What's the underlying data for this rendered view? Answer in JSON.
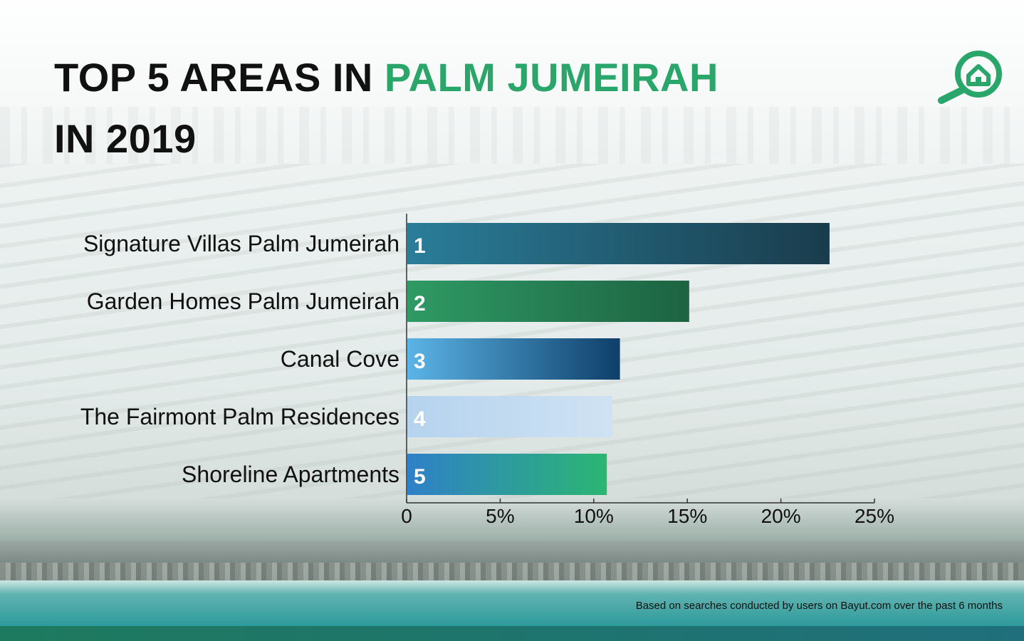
{
  "title": {
    "part1": "TOP 5 AREAS IN ",
    "accent": "PALM JUMEIRAH",
    "line2": "IN 2019"
  },
  "logo": {
    "icon": "search-home-icon",
    "color": "#2aa66b"
  },
  "footnote": "Based on searches conducted by users on Bayut.com over the past 6 months",
  "colors": {
    "accent": "#2aa66b",
    "title": "#111111"
  },
  "chart_data": {
    "type": "bar",
    "orientation": "horizontal",
    "title": "TOP 5 AREAS IN PALM JUMEIRAH IN 2019",
    "categories": [
      "Signature Villas Palm Jumeirah",
      "Garden Homes Palm Jumeirah",
      "Canal Cove",
      "The Fairmont Palm Residences",
      "Shoreline Apartments"
    ],
    "values": [
      22.6,
      15.1,
      11.4,
      11.0,
      10.7
    ],
    "bar_labels": [
      "1",
      "2",
      "3",
      "4",
      "5"
    ],
    "bar_gradients": [
      [
        "#2a7d99",
        "#1a3c4c"
      ],
      [
        "#2f9a64",
        "#1d6342"
      ],
      [
        "#5bb4e6",
        "#0f3f6a"
      ],
      [
        "#b5d3ee",
        "#cfe2f3"
      ],
      [
        "#2f80c8",
        "#2bb672"
      ]
    ],
    "xlim": [
      0,
      25
    ],
    "xticks": [
      0,
      5,
      10,
      15,
      20,
      25
    ],
    "xtick_labels": [
      "0",
      "5%",
      "10%",
      "15%",
      "20%",
      "25%"
    ],
    "xlabel": "",
    "ylabel": "",
    "grid": false,
    "legend": "none"
  }
}
